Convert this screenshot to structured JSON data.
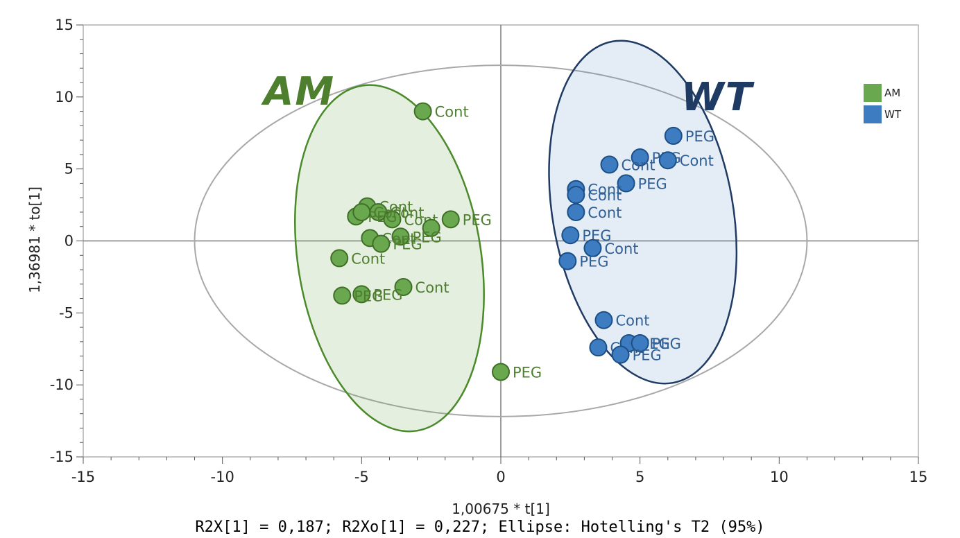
{
  "chart_data": {
    "type": "scatter",
    "xlabel": "1,00675 * t[1]",
    "ylabel": "1,36981 * to[1]",
    "xlim": [
      -15,
      15
    ],
    "ylim": [
      -15,
      15
    ],
    "xticks": [
      -15,
      -10,
      -5,
      0,
      5,
      10,
      15
    ],
    "yticks": [
      -15,
      -10,
      -5,
      0,
      5,
      10,
      15
    ],
    "caption": "R2X[1] = 0,187; R2Xo[1] = 0,227; Ellipse: Hotelling's T2 (95%)",
    "grid": false,
    "legend_position": "top-right",
    "group_labels": [
      {
        "text": "AM",
        "color": "#4e7f2e"
      },
      {
        "text": "WT",
        "color": "#1f3a63"
      }
    ],
    "series": [
      {
        "name": "AM",
        "color": "#6aa84f",
        "stroke": "#3f6f26",
        "label_color": "#4e7f2e",
        "points": [
          {
            "x": -2.8,
            "y": 9.0,
            "label": "Cont"
          },
          {
            "x": -4.8,
            "y": 2.4,
            "label": "Cont"
          },
          {
            "x": -4.4,
            "y": 2.0,
            "label": "Cont"
          },
          {
            "x": -3.9,
            "y": 1.5,
            "label": "Cont"
          },
          {
            "x": -5.2,
            "y": 1.7,
            "label": "PEG"
          },
          {
            "x": -5.0,
            "y": 2.0,
            "label": "Cont"
          },
          {
            "x": -1.8,
            "y": 1.5,
            "label": "PEG"
          },
          {
            "x": -2.5,
            "y": 0.9,
            "label": ""
          },
          {
            "x": -3.6,
            "y": 0.3,
            "label": "PEG"
          },
          {
            "x": -4.7,
            "y": 0.2,
            "label": "Cont"
          },
          {
            "x": -4.3,
            "y": -0.2,
            "label": "PEG"
          },
          {
            "x": -5.8,
            "y": -1.2,
            "label": "Cont"
          },
          {
            "x": -3.5,
            "y": -3.2,
            "label": "Cont"
          },
          {
            "x": -5.0,
            "y": -3.7,
            "label": "PEG"
          },
          {
            "x": -5.7,
            "y": -3.8,
            "label": "PEG"
          },
          {
            "x": 0.0,
            "y": -9.1,
            "label": "PEG"
          }
        ]
      },
      {
        "name": "WT",
        "color": "#3d7cc1",
        "stroke": "#1c4f86",
        "label_color": "#2f5f95",
        "points": [
          {
            "x": 6.2,
            "y": 7.3,
            "label": "PEG"
          },
          {
            "x": 5.0,
            "y": 5.8,
            "label": "PEG"
          },
          {
            "x": 6.0,
            "y": 5.6,
            "label": "Cont"
          },
          {
            "x": 3.9,
            "y": 5.3,
            "label": "Cont"
          },
          {
            "x": 4.5,
            "y": 4.0,
            "label": "PEG"
          },
          {
            "x": 2.7,
            "y": 3.6,
            "label": "Cont"
          },
          {
            "x": 2.7,
            "y": 3.2,
            "label": "Cont"
          },
          {
            "x": 2.7,
            "y": 2.0,
            "label": "Cont"
          },
          {
            "x": 2.5,
            "y": 0.4,
            "label": "PEG"
          },
          {
            "x": 3.3,
            "y": -0.5,
            "label": "Cont"
          },
          {
            "x": 2.4,
            "y": -1.4,
            "label": "PEG"
          },
          {
            "x": 3.7,
            "y": -5.5,
            "label": "Cont"
          },
          {
            "x": 3.5,
            "y": -7.4,
            "label": "Cont"
          },
          {
            "x": 4.6,
            "y": -7.1,
            "label": "PEG"
          },
          {
            "x": 5.0,
            "y": -7.1,
            "label": "PEG"
          },
          {
            "x": 4.3,
            "y": -7.9,
            "label": "PEG"
          }
        ]
      }
    ]
  }
}
